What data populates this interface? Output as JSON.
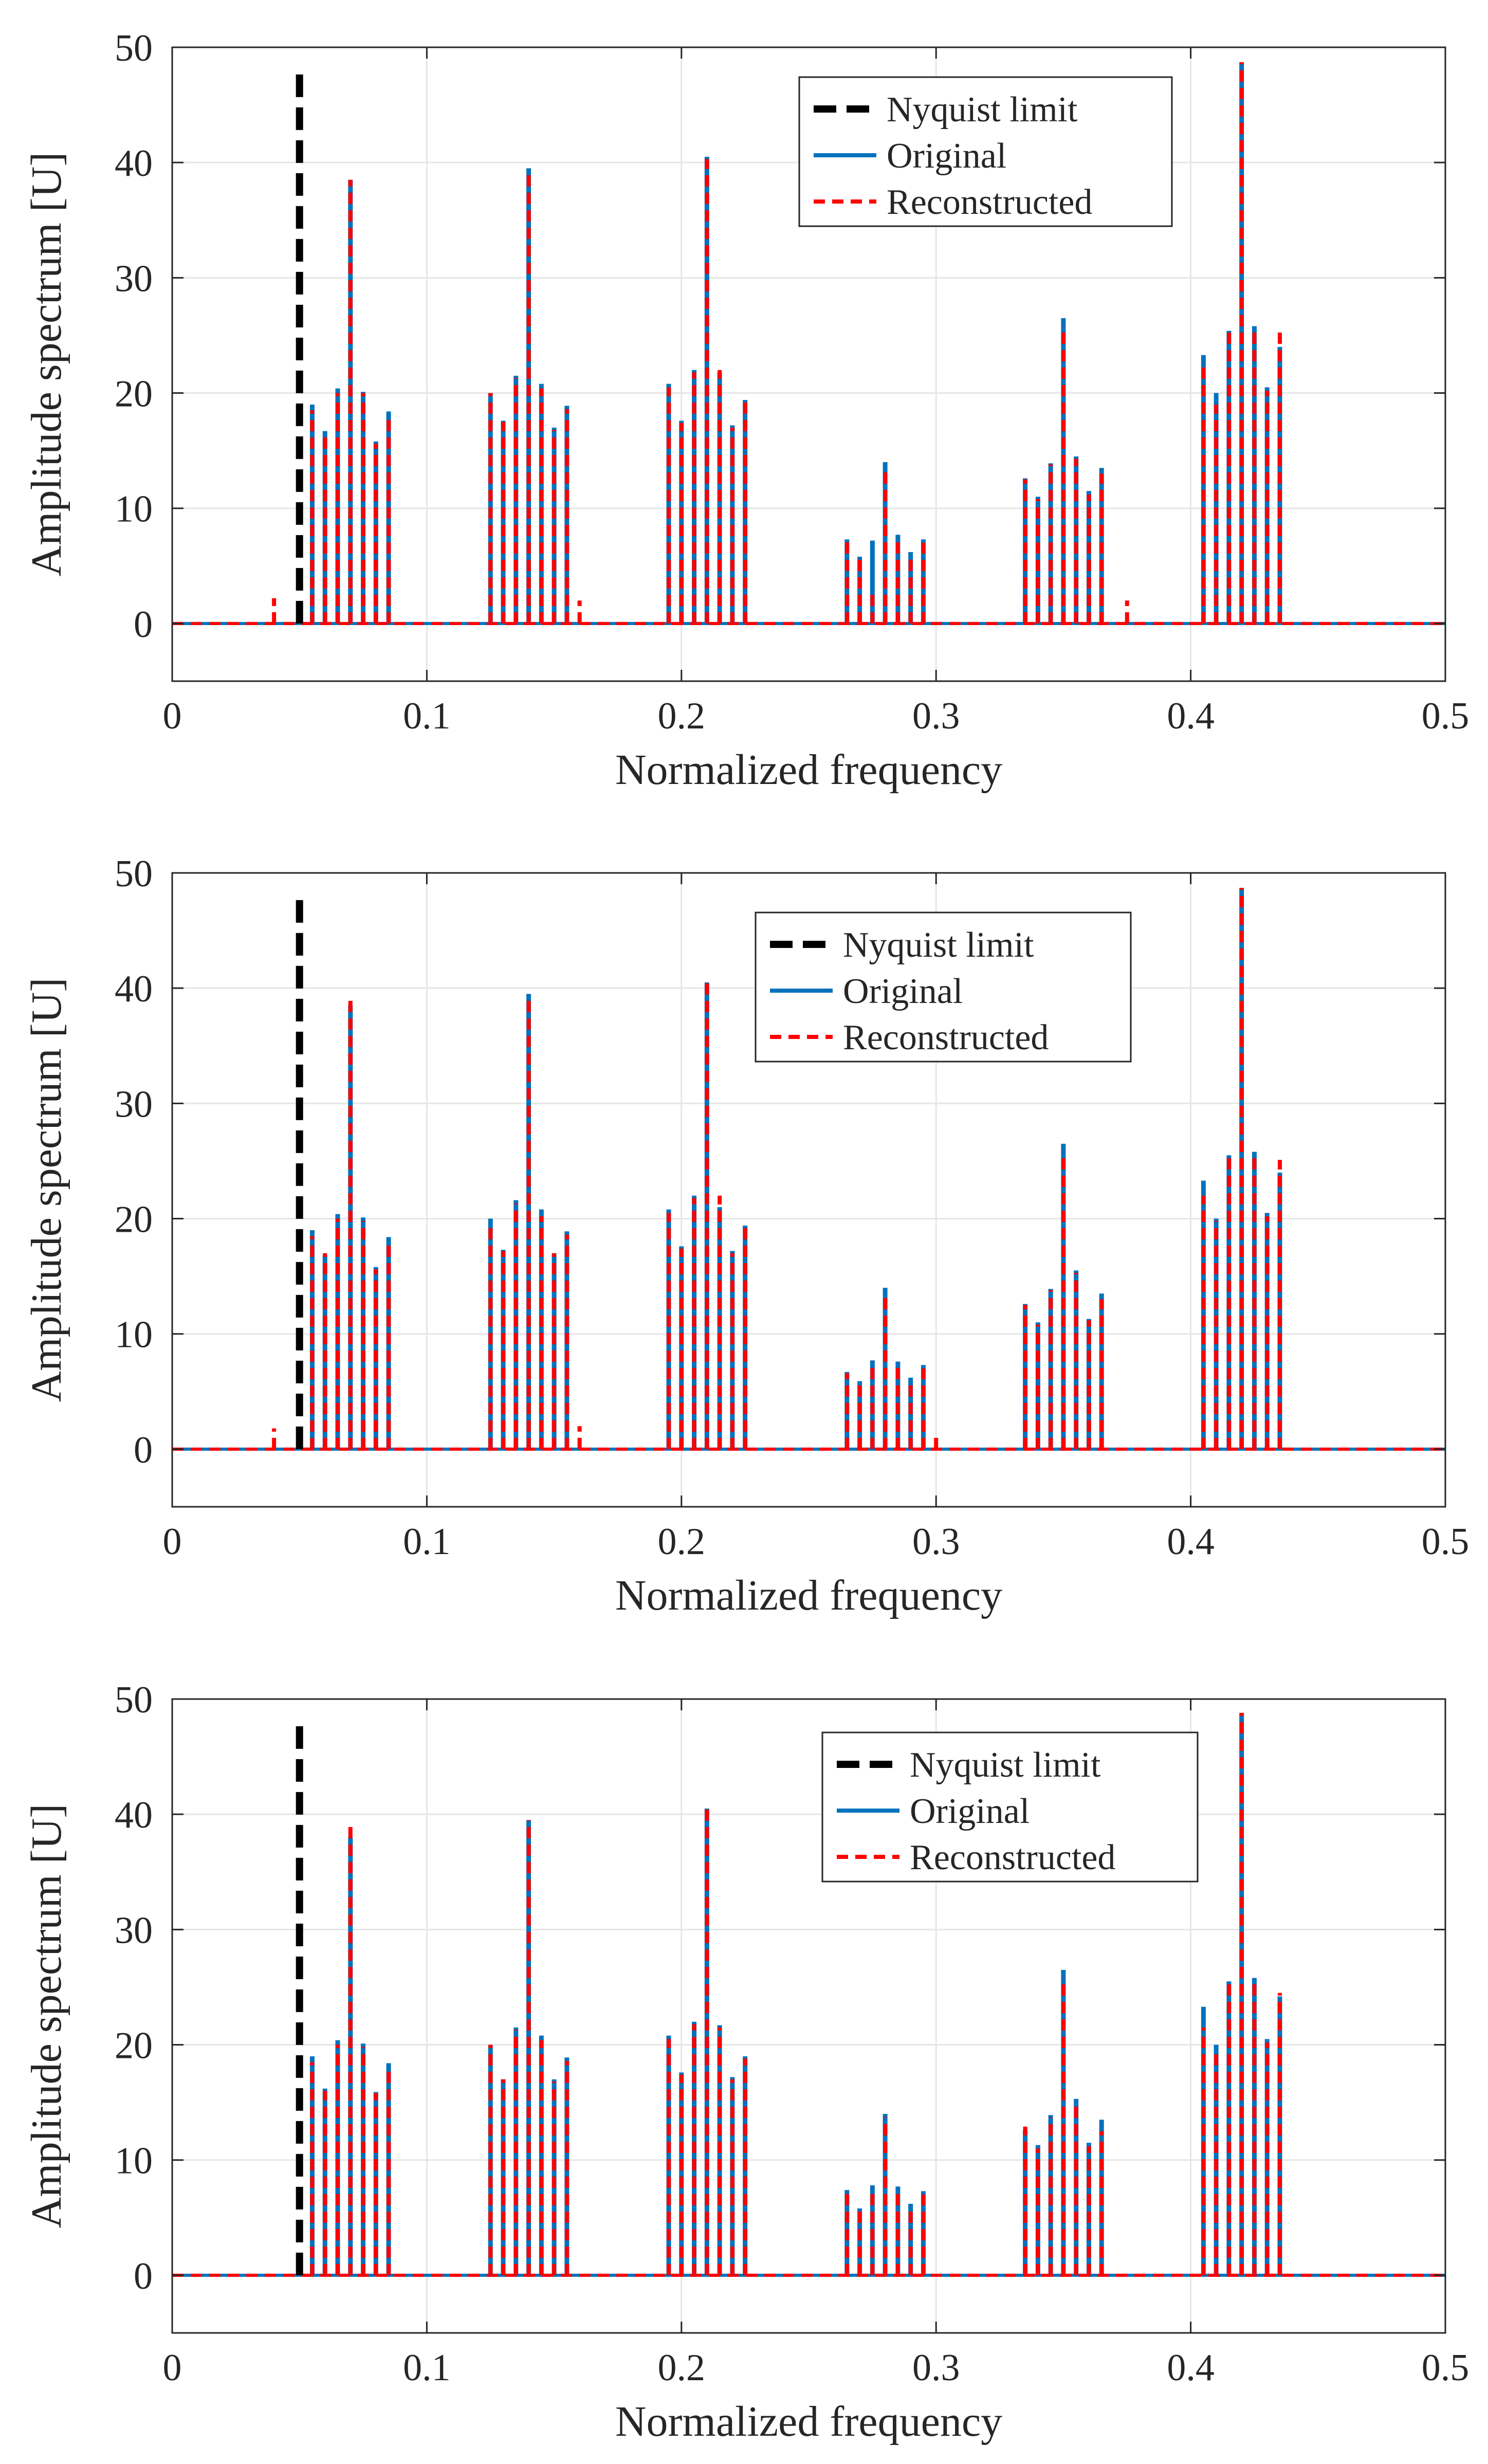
{
  "chart_data": [
    {
      "type": "line",
      "xlabel": "Normalized frequency",
      "ylabel": "Amplitude spectrum [U]",
      "xlim": [
        0,
        0.5
      ],
      "ylim": [
        -5,
        50
      ],
      "xticks": [
        0,
        0.1,
        0.2,
        0.3,
        0.4,
        0.5
      ],
      "xtick_labels": [
        "0",
        "0.1",
        "0.2",
        "0.3",
        "0.4",
        "0.5"
      ],
      "yticks": [
        0,
        10,
        20,
        30,
        40,
        50
      ],
      "ytick_labels": [
        "0",
        "10",
        "20",
        "30",
        "40",
        "50"
      ],
      "grid": true,
      "legend_position": "top-right",
      "nyquist_limit": {
        "name": "Nyquist limit",
        "x": 0.05,
        "y_top": 48,
        "color": "#000000"
      },
      "series": [
        {
          "name": "Original",
          "color": "#0072BD",
          "style": "solid",
          "x": [
            0.055,
            0.06,
            0.065,
            0.07,
            0.075,
            0.08,
            0.085,
            0.125,
            0.13,
            0.135,
            0.14,
            0.145,
            0.15,
            0.155,
            0.195,
            0.2,
            0.205,
            0.21,
            0.215,
            0.22,
            0.225,
            0.265,
            0.27,
            0.275,
            0.28,
            0.285,
            0.29,
            0.295,
            0.335,
            0.34,
            0.345,
            0.35,
            0.355,
            0.36,
            0.365,
            0.405,
            0.41,
            0.415,
            0.42,
            0.425,
            0.43,
            0.435
          ],
          "y": [
            19,
            16.7,
            20.4,
            38.5,
            20.1,
            15.8,
            18.4,
            20,
            17.6,
            21.5,
            39.5,
            20.8,
            17,
            18.9,
            20.8,
            17.6,
            22,
            40.5,
            21.8,
            17.2,
            19.4,
            7.3,
            5.8,
            7.2,
            14,
            7.7,
            6.2,
            7.3,
            12.6,
            11,
            13.9,
            26.5,
            14.5,
            11.5,
            13.5,
            23.3,
            20,
            25.4,
            48.7,
            25.8,
            20.5,
            24
          ]
        },
        {
          "name": "Reconstructed",
          "color": "#FF0000",
          "style": "dashed",
          "x": [
            0.04,
            0.055,
            0.06,
            0.065,
            0.07,
            0.075,
            0.08,
            0.085,
            0.125,
            0.13,
            0.135,
            0.14,
            0.145,
            0.15,
            0.155,
            0.16,
            0.195,
            0.2,
            0.205,
            0.21,
            0.215,
            0.22,
            0.225,
            0.265,
            0.27,
            0.275,
            0.28,
            0.285,
            0.29,
            0.295,
            0.335,
            0.34,
            0.345,
            0.35,
            0.355,
            0.36,
            0.365,
            0.375,
            0.405,
            0.41,
            0.415,
            0.42,
            0.425,
            0.43,
            0.435
          ],
          "y": [
            2.2,
            18.5,
            16.5,
            20,
            38.5,
            20,
            15.6,
            18.2,
            20,
            17.5,
            21.3,
            39.2,
            20.4,
            16.8,
            18.6,
            2,
            20.5,
            17.4,
            21.8,
            40.3,
            22,
            17,
            19.3,
            7.1,
            5.6,
            3,
            13.5,
            7.4,
            6,
            7,
            12.5,
            10.8,
            13.8,
            25.8,
            14.3,
            11.2,
            13,
            2,
            22.5,
            19,
            25.3,
            48.7,
            25.6,
            20.2,
            25.3
          ]
        }
      ],
      "legend": [
        {
          "label": "Nyquist limit"
        },
        {
          "label": "Original"
        },
        {
          "label": "Reconstructed"
        }
      ]
    },
    {
      "type": "line",
      "xlabel": "Normalized frequency",
      "ylabel": "Amplitude spectrum [U]",
      "xlim": [
        0,
        0.5
      ],
      "ylim": [
        -5,
        50
      ],
      "xticks": [
        0,
        0.1,
        0.2,
        0.3,
        0.4,
        0.5
      ],
      "xtick_labels": [
        "0",
        "0.1",
        "0.2",
        "0.3",
        "0.4",
        "0.5"
      ],
      "yticks": [
        0,
        10,
        20,
        30,
        40,
        50
      ],
      "ytick_labels": [
        "0",
        "10",
        "20",
        "30",
        "40",
        "50"
      ],
      "grid": true,
      "legend_position": "top-right",
      "nyquist_limit": {
        "name": "Nyquist limit",
        "x": 0.05,
        "y_top": 48,
        "color": "#000000"
      },
      "series": [
        {
          "name": "Original",
          "color": "#0072BD",
          "style": "solid",
          "x": [
            0.055,
            0.06,
            0.065,
            0.07,
            0.075,
            0.08,
            0.085,
            0.125,
            0.13,
            0.135,
            0.14,
            0.145,
            0.15,
            0.155,
            0.195,
            0.2,
            0.205,
            0.21,
            0.215,
            0.22,
            0.225,
            0.265,
            0.27,
            0.275,
            0.28,
            0.285,
            0.29,
            0.295,
            0.335,
            0.34,
            0.345,
            0.35,
            0.355,
            0.36,
            0.365,
            0.405,
            0.41,
            0.415,
            0.42,
            0.425,
            0.43,
            0.435
          ],
          "y": [
            19,
            16.8,
            20.4,
            38.5,
            20.1,
            15.8,
            18.4,
            20,
            17.3,
            21.6,
            39.5,
            20.8,
            17,
            18.9,
            20.8,
            17.6,
            22,
            40.5,
            21,
            17.2,
            19.4,
            6.7,
            5.9,
            7.7,
            14,
            7.6,
            6.2,
            7.3,
            12.6,
            11,
            13.9,
            26.5,
            15.5,
            11.3,
            13.5,
            23.3,
            20,
            25.5,
            48.7,
            25.8,
            20.5,
            24
          ]
        },
        {
          "name": "Reconstructed",
          "color": "#FF0000",
          "style": "dashed",
          "x": [
            0.04,
            0.055,
            0.06,
            0.065,
            0.07,
            0.075,
            0.08,
            0.085,
            0.125,
            0.13,
            0.135,
            0.14,
            0.145,
            0.15,
            0.155,
            0.16,
            0.195,
            0.2,
            0.205,
            0.21,
            0.215,
            0.22,
            0.225,
            0.265,
            0.27,
            0.275,
            0.28,
            0.285,
            0.29,
            0.295,
            0.3,
            0.335,
            0.34,
            0.345,
            0.35,
            0.355,
            0.36,
            0.365,
            0.405,
            0.41,
            0.415,
            0.42,
            0.425,
            0.43,
            0.435
          ],
          "y": [
            1.8,
            18.5,
            17,
            20,
            39,
            19.8,
            15.6,
            18.2,
            19.2,
            17.2,
            21.3,
            39.2,
            20.2,
            17,
            18.6,
            2,
            20.5,
            17.4,
            21.8,
            40.5,
            22,
            17,
            19.3,
            6.6,
            5.8,
            7.6,
            13.5,
            7.4,
            6,
            7,
            1.5,
            12.5,
            10.8,
            13.8,
            25.8,
            15.3,
            11.2,
            13,
            22,
            19.8,
            25.3,
            48.7,
            25.3,
            20.2,
            25.1
          ]
        }
      ],
      "legend": [
        {
          "label": "Nyquist limit"
        },
        {
          "label": "Original"
        },
        {
          "label": "Reconstructed"
        }
      ]
    },
    {
      "type": "line",
      "xlabel": "Normalized frequency",
      "ylabel": "Amplitude spectrum [U]",
      "xlim": [
        0,
        0.5
      ],
      "ylim": [
        -5,
        50
      ],
      "xticks": [
        0,
        0.1,
        0.2,
        0.3,
        0.4,
        0.5
      ],
      "xtick_labels": [
        "0",
        "0.1",
        "0.2",
        "0.3",
        "0.4",
        "0.5"
      ],
      "yticks": [
        0,
        10,
        20,
        30,
        40,
        50
      ],
      "ytick_labels": [
        "0",
        "10",
        "20",
        "30",
        "40",
        "50"
      ],
      "grid": true,
      "legend_position": "top-right",
      "nyquist_limit": {
        "name": "Nyquist limit",
        "x": 0.05,
        "y_top": 48,
        "color": "#000000"
      },
      "series": [
        {
          "name": "Original",
          "color": "#0072BD",
          "style": "solid",
          "x": [
            0.055,
            0.06,
            0.065,
            0.07,
            0.075,
            0.08,
            0.085,
            0.125,
            0.13,
            0.135,
            0.14,
            0.145,
            0.15,
            0.155,
            0.195,
            0.2,
            0.205,
            0.21,
            0.215,
            0.22,
            0.225,
            0.265,
            0.27,
            0.275,
            0.28,
            0.285,
            0.29,
            0.295,
            0.335,
            0.34,
            0.345,
            0.35,
            0.355,
            0.36,
            0.365,
            0.405,
            0.41,
            0.415,
            0.42,
            0.425,
            0.43,
            0.435
          ],
          "y": [
            19,
            16.2,
            20.4,
            38,
            20.1,
            15.9,
            18.4,
            20,
            17,
            21.5,
            39.5,
            20.8,
            17,
            18.9,
            20.8,
            17.6,
            22,
            40.5,
            21.7,
            17.2,
            19,
            7.4,
            5.8,
            7.8,
            14,
            7.7,
            6.2,
            7.3,
            12.6,
            11.3,
            13.9,
            26.5,
            15.3,
            11.5,
            13.5,
            23.3,
            20,
            25.5,
            48.8,
            25.8,
            20.5,
            24.2
          ]
        },
        {
          "name": "Reconstructed",
          "color": "#FF0000",
          "style": "dashed",
          "x": [
            0.055,
            0.06,
            0.065,
            0.07,
            0.075,
            0.08,
            0.085,
            0.125,
            0.13,
            0.135,
            0.14,
            0.145,
            0.15,
            0.155,
            0.195,
            0.2,
            0.205,
            0.21,
            0.215,
            0.22,
            0.225,
            0.265,
            0.27,
            0.275,
            0.28,
            0.285,
            0.29,
            0.295,
            0.335,
            0.34,
            0.345,
            0.35,
            0.355,
            0.36,
            0.365,
            0.405,
            0.41,
            0.415,
            0.42,
            0.425,
            0.43,
            0.435
          ],
          "y": [
            18.5,
            16,
            20,
            39,
            19.8,
            15.8,
            18.2,
            20,
            17,
            21.3,
            39.5,
            20.4,
            16.8,
            18.6,
            20.5,
            17.4,
            21.8,
            40.5,
            21.5,
            17,
            18.8,
            7.2,
            5.6,
            7.6,
            13.7,
            7.4,
            6,
            7,
            12.9,
            11,
            13.7,
            25.8,
            15,
            11.2,
            12.5,
            21.5,
            19.6,
            25.4,
            48.8,
            25.3,
            20.2,
            24.5
          ]
        }
      ],
      "legend": [
        {
          "label": "Nyquist limit"
        },
        {
          "label": "Original"
        },
        {
          "label": "Reconstructed"
        }
      ]
    }
  ]
}
